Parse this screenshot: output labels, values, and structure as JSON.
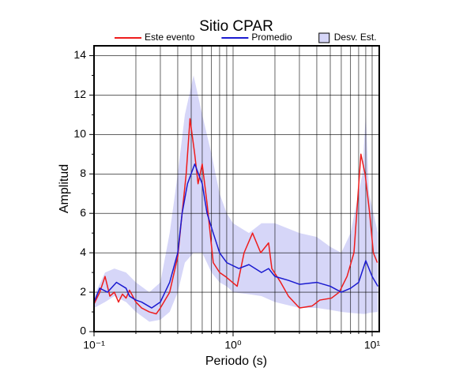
{
  "chart_data": {
    "type": "line",
    "title": "Sitio CPAR",
    "xlabel": "Periodo (s)",
    "ylabel": "Amplitud",
    "xscale": "log",
    "xlim": [
      0.1,
      11.25
    ],
    "ylim": [
      0,
      14.5
    ],
    "xticks": [
      {
        "value": 0.1,
        "label": "10⁻¹"
      },
      {
        "value": 1,
        "label": "10⁰"
      },
      {
        "value": 10,
        "label": "10¹"
      }
    ],
    "xminor": [
      0.2,
      0.3,
      0.4,
      0.5,
      0.6,
      0.7,
      0.8,
      0.9,
      2,
      3,
      4,
      5,
      6,
      7,
      8,
      9
    ],
    "yticks": [
      0,
      2,
      4,
      6,
      8,
      10,
      12,
      14
    ],
    "yminor": [
      1,
      3,
      5,
      7,
      9,
      11,
      13
    ],
    "grid": true,
    "legend": "top",
    "band": {
      "name": "Desv. Est.",
      "color": "#d6d6f8",
      "x": [
        0.1,
        0.12,
        0.14,
        0.17,
        0.2,
        0.25,
        0.3,
        0.35,
        0.4,
        0.45,
        0.52,
        0.6,
        0.7,
        0.8,
        0.9,
        1.0,
        1.3,
        1.6,
        2.0,
        3.0,
        4.0,
        5.0,
        6.0,
        7.0,
        8.5,
        9.0,
        9.5,
        11.0
      ],
      "upper": [
        1.8,
        3.0,
        3.2,
        3.0,
        2.5,
        2.0,
        2.5,
        5.0,
        8.0,
        11.0,
        13.0,
        11.0,
        9.0,
        7.0,
        6.0,
        5.5,
        5.0,
        5.5,
        5.5,
        5.0,
        4.8,
        4.3,
        4.0,
        5.0,
        8.0,
        11.0,
        7.0,
        5.0
      ],
      "lower": [
        1.2,
        1.5,
        1.8,
        1.5,
        1.0,
        0.5,
        0.6,
        1.0,
        2.0,
        3.5,
        4.0,
        4.0,
        3.0,
        2.5,
        2.3,
        2.0,
        1.9,
        1.8,
        1.5,
        1.2,
        1.2,
        1.1,
        1.0,
        0.95,
        0.9,
        0.9,
        0.95,
        1.0
      ]
    },
    "series": [
      {
        "name": "Este evento",
        "color": "#ee1c1c",
        "x": [
          0.1,
          0.11,
          0.12,
          0.13,
          0.14,
          0.15,
          0.16,
          0.17,
          0.18,
          0.2,
          0.22,
          0.25,
          0.28,
          0.3,
          0.35,
          0.4,
          0.43,
          0.46,
          0.49,
          0.53,
          0.56,
          0.6,
          0.65,
          0.72,
          0.8,
          0.88,
          1.07,
          1.2,
          1.38,
          1.58,
          1.8,
          1.9,
          2.2,
          2.5,
          3.0,
          3.7,
          4.2,
          5.1,
          5.8,
          6.6,
          7.4,
          8.3,
          8.9,
          9.6,
          10.2,
          10.9
        ],
        "values": [
          1.4,
          2.0,
          2.8,
          1.8,
          2.0,
          1.5,
          1.9,
          1.7,
          2.1,
          1.5,
          1.2,
          1.0,
          0.9,
          1.2,
          2.0,
          3.8,
          6.0,
          8.0,
          10.8,
          9.0,
          7.5,
          8.5,
          6.5,
          3.5,
          3.0,
          2.8,
          2.3,
          4.0,
          5.0,
          4.0,
          4.5,
          3.2,
          2.5,
          1.8,
          1.2,
          1.3,
          1.6,
          1.7,
          2.0,
          2.8,
          4.0,
          9.0,
          8.0,
          6.0,
          4.0,
          3.5
        ]
      },
      {
        "name": "Promedio",
        "color": "#1a1ad0",
        "x": [
          0.1,
          0.11,
          0.125,
          0.145,
          0.17,
          0.18,
          0.2,
          0.22,
          0.26,
          0.3,
          0.35,
          0.4,
          0.43,
          0.47,
          0.53,
          0.6,
          0.65,
          0.72,
          0.8,
          0.9,
          1.1,
          1.3,
          1.6,
          1.8,
          2.0,
          2.5,
          3.0,
          4.0,
          5.0,
          6.0,
          7.0,
          8.0,
          9.0,
          10.0,
          11.0
        ],
        "values": [
          1.5,
          2.2,
          2.0,
          2.5,
          2.2,
          1.8,
          1.6,
          1.5,
          1.2,
          1.5,
          2.5,
          4.0,
          6.0,
          7.5,
          8.5,
          7.5,
          6.0,
          5.0,
          4.0,
          3.5,
          3.2,
          3.4,
          3.0,
          3.2,
          2.8,
          2.6,
          2.4,
          2.5,
          2.3,
          2.0,
          2.2,
          2.5,
          3.6,
          2.8,
          2.3
        ]
      }
    ]
  }
}
